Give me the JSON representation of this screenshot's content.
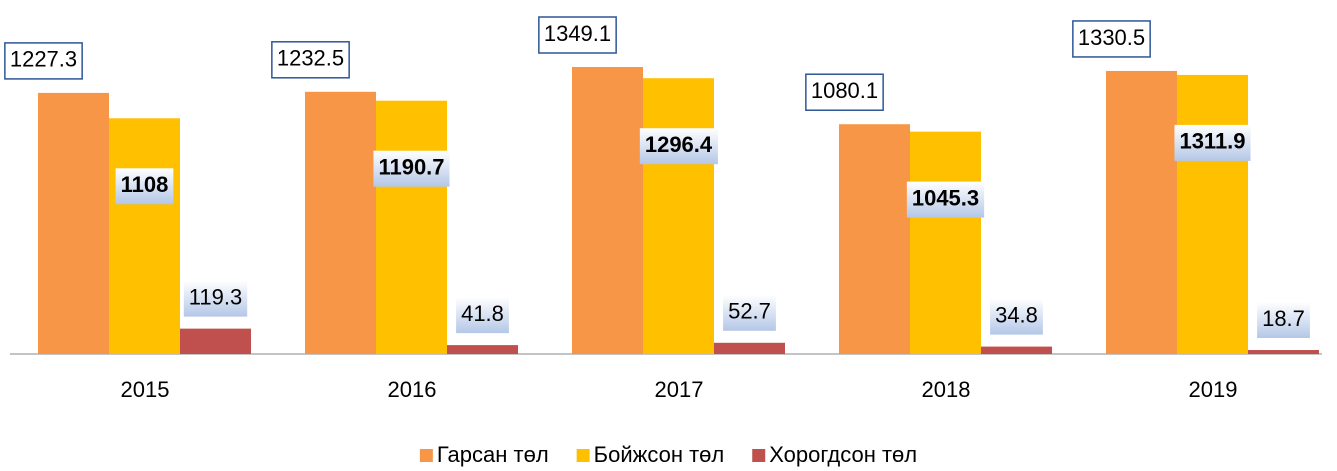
{
  "chart_data": {
    "type": "bar",
    "categories": [
      "2015",
      "2016",
      "2017",
      "2018",
      "2019"
    ],
    "series": [
      {
        "name": "Гарсан төл",
        "color": "#f79646",
        "values": [
          1227.3,
          1232.5,
          1349.1,
          1080.1,
          1330.5
        ]
      },
      {
        "name": "Бойжсон төл",
        "color": "#ffc000",
        "values": [
          1108,
          1190.7,
          1296.4,
          1045.3,
          1311.9
        ]
      },
      {
        "name": "Хорогдсон төл",
        "color": "#c0504d",
        "values": [
          119.3,
          41.8,
          52.7,
          34.8,
          18.7
        ]
      }
    ],
    "legend": "bottom"
  }
}
